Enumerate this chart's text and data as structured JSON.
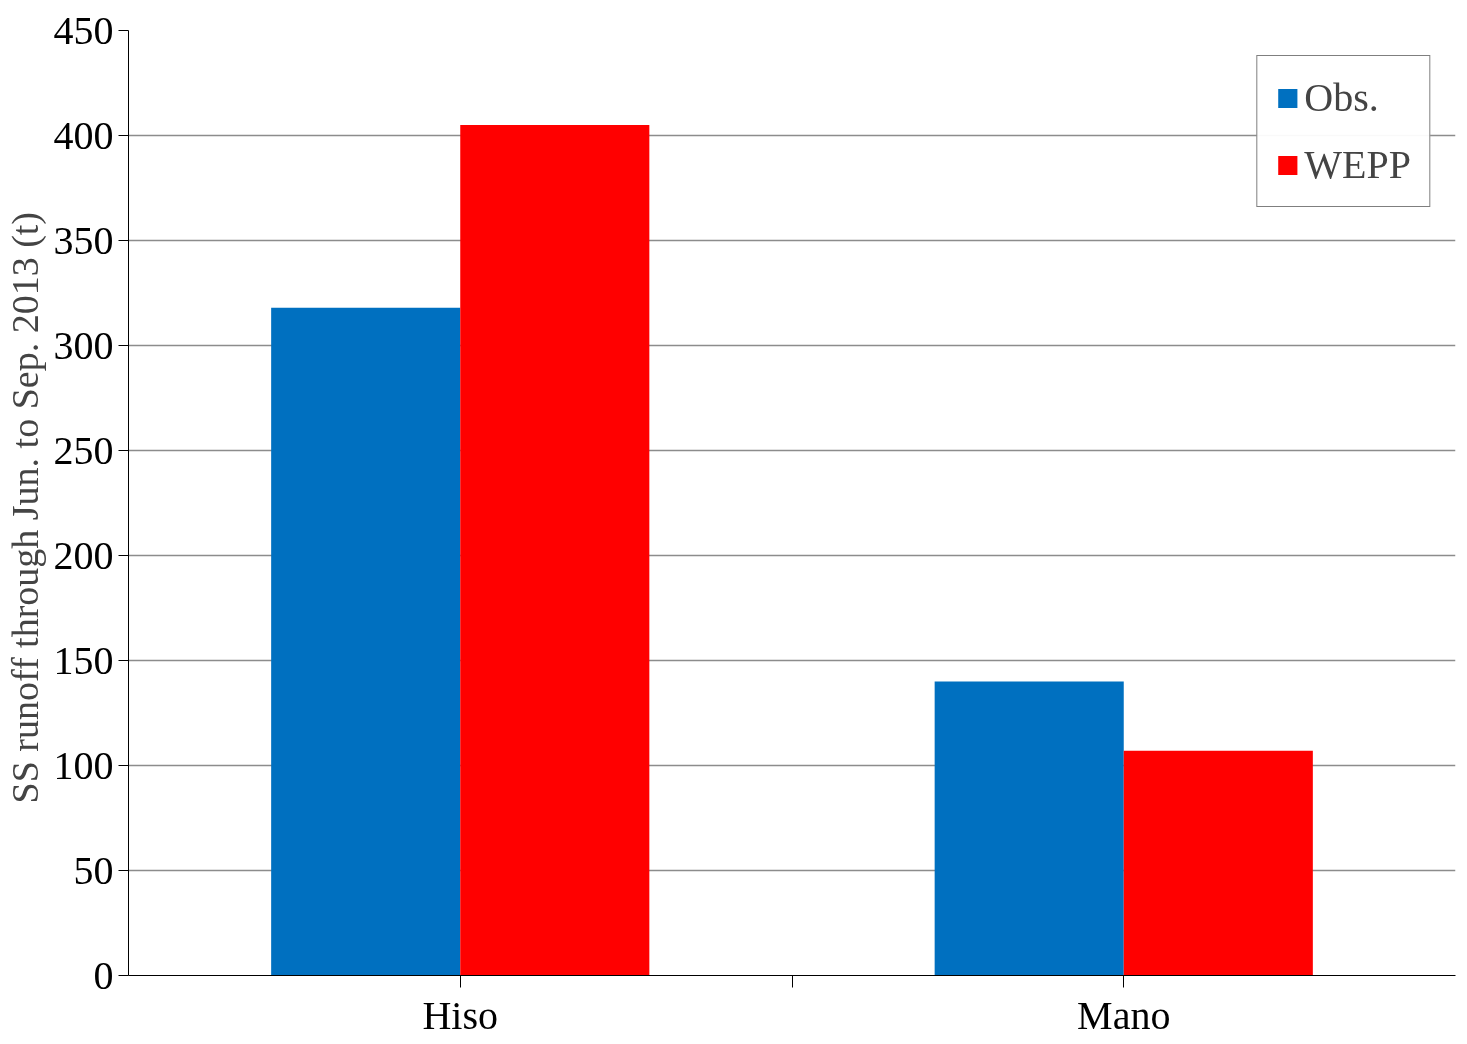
{
  "chart_data": {
    "type": "bar",
    "ylabel": "SS runoff through Jun. to  Sep. 2013 (t)",
    "categories": [
      "Hiso",
      "Mano"
    ],
    "series": [
      {
        "name": "Obs.",
        "color": "#0070c0",
        "values": [
          318,
          140
        ]
      },
      {
        "name": "WEPP",
        "color": "#ff0000",
        "values": [
          405,
          107
        ]
      }
    ],
    "ylim": [
      0,
      450
    ],
    "yticks": [
      0,
      50,
      100,
      150,
      200,
      250,
      300,
      350,
      400,
      450
    ],
    "grid": "y",
    "legend": "top right"
  }
}
